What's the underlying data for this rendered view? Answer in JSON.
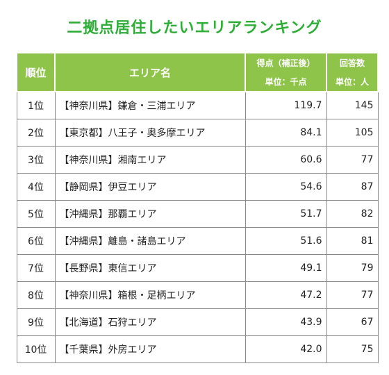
{
  "title": "二拠点居住したいエリアランキング",
  "headers": {
    "rank": "順位",
    "area": "エリア名",
    "score": "得点（補正後）",
    "score_unit": "単位：千点",
    "count": "回答数",
    "count_unit": "単位：人"
  },
  "rows": [
    {
      "rank": "1位",
      "area": "【神奈川県】鎌倉・三浦エリア",
      "score": "119.7",
      "count": "145"
    },
    {
      "rank": "2位",
      "area": "【東京都】八王子・奥多摩エリア",
      "score": "84.1",
      "count": "105"
    },
    {
      "rank": "3位",
      "area": "【神奈川県】湘南エリア",
      "score": "60.6",
      "count": "77"
    },
    {
      "rank": "4位",
      "area": "【静岡県】伊豆エリア",
      "score": "54.6",
      "count": "87"
    },
    {
      "rank": "5位",
      "area": "【沖縄県】那覇エリア",
      "score": "51.7",
      "count": "82"
    },
    {
      "rank": "6位",
      "area": "【沖縄県】離島・諸島エリア",
      "score": "51.6",
      "count": "81"
    },
    {
      "rank": "7位",
      "area": "【長野県】東信エリア",
      "score": "49.1",
      "count": "79"
    },
    {
      "rank": "8位",
      "area": "【神奈川県】箱根・足柄エリア",
      "score": "47.2",
      "count": "77"
    },
    {
      "rank": "9位",
      "area": "【北海道】石狩エリア",
      "score": "43.9",
      "count": "67"
    },
    {
      "rank": "10位",
      "area": "【千葉県】外房エリア",
      "score": "42.0",
      "count": "75"
    }
  ],
  "colors": {
    "title": "#2eae37",
    "header_bg": "#8ec449",
    "header_text": "#ffffff",
    "border": "#8a8a8a"
  }
}
